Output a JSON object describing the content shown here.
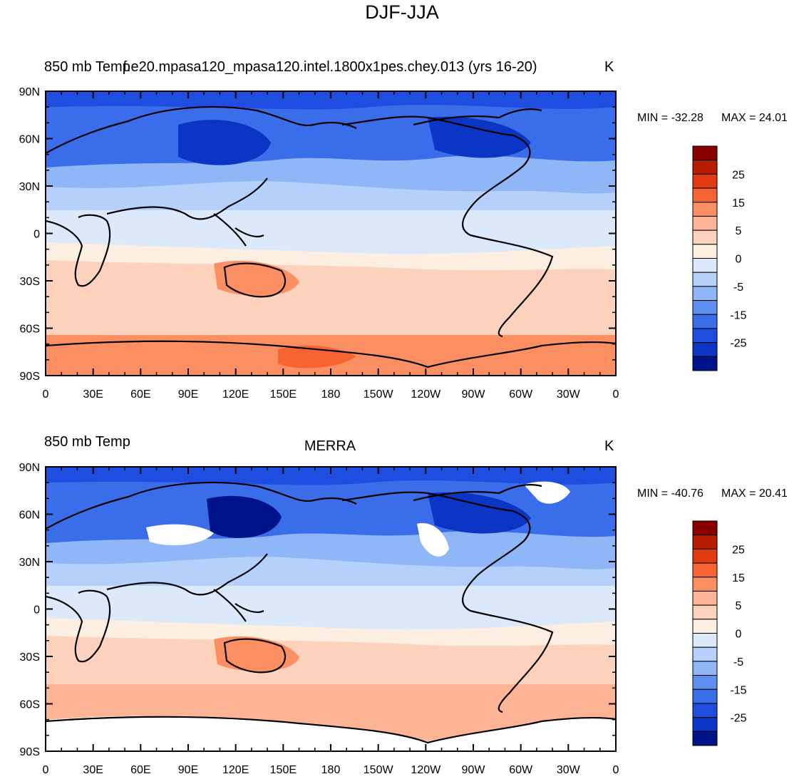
{
  "figure": {
    "title": "DJF-JJA"
  },
  "colorbar": {
    "labels": [
      "25",
      "15",
      "5",
      "0",
      "-5",
      "-15",
      "-25"
    ],
    "colors": [
      "#8a0000",
      "#b81d00",
      "#e23a12",
      "#f86431",
      "#fc8f62",
      "#fdb495",
      "#fdd2bc",
      "#fdeee2",
      "#dbe9fb",
      "#b5d0fa",
      "#8fb6f7",
      "#5f90f1",
      "#3a6dea",
      "#1f4de0",
      "#0b35c4",
      "#00138a"
    ]
  },
  "axes": {
    "lat_labels": [
      "90N",
      "60N",
      "30N",
      "0",
      "30S",
      "60S",
      "90S"
    ],
    "lon_labels": [
      "0",
      "30E",
      "60E",
      "90E",
      "120E",
      "150E",
      "180",
      "150W",
      "120W",
      "90W",
      "60W",
      "30W",
      "0"
    ]
  },
  "panels": [
    {
      "left_title": "850 mb Temp",
      "center_title": "f.e20.mpasa120_mpasa120.intel.1800x1pes.chey.013 (yrs 16-20)",
      "units": "K",
      "min_label": "MIN = -32.28",
      "max_label": "MAX =  24.01"
    },
    {
      "left_title": "850 mb Temp",
      "center_title": "MERRA",
      "units": "K",
      "min_label": "MIN = -40.76",
      "max_label": "MAX =  20.41"
    }
  ]
}
